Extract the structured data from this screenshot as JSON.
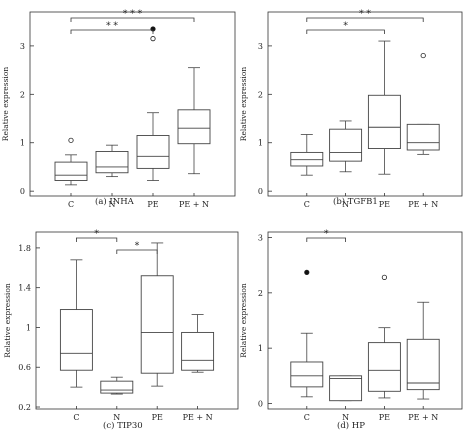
{
  "chart_data": [
    {
      "type": "box",
      "caption": "(a)  INHA",
      "ylabel": "Relative expression",
      "categories": [
        "C",
        "N",
        "PE",
        "PE + N"
      ],
      "ylim": [
        -0.1,
        3.7
      ],
      "yticks": [
        0,
        1,
        2,
        3
      ],
      "boxes": [
        {
          "min": 0.13,
          "q1": 0.22,
          "median": 0.33,
          "q3": 0.6,
          "max": 0.75,
          "outliers": [
            {
              "value": 1.05,
              "filled": false
            }
          ]
        },
        {
          "min": 0.3,
          "q1": 0.38,
          "median": 0.5,
          "q3": 0.82,
          "max": 0.95,
          "outliers": []
        },
        {
          "min": 0.22,
          "q1": 0.47,
          "median": 0.72,
          "q3": 1.15,
          "max": 1.62,
          "outliers": [
            {
              "value": 3.35,
              "filled": true
            },
            {
              "value": 3.15,
              "filled": false
            }
          ]
        },
        {
          "min": 0.36,
          "q1": 0.98,
          "median": 1.3,
          "q3": 1.68,
          "max": 2.55,
          "outliers": []
        }
      ],
      "significance": [
        {
          "from": 0,
          "to": 3,
          "label": "* * *"
        },
        {
          "from": 0,
          "to": 2,
          "label": "* *"
        }
      ]
    },
    {
      "type": "box",
      "caption": "(b)  TGFB1",
      "ylabel": "Relative expression",
      "categories": [
        "C",
        "N",
        "PE",
        "PE + N"
      ],
      "ylim": [
        -0.1,
        3.7
      ],
      "yticks": [
        0,
        1,
        2,
        3
      ],
      "boxes": [
        {
          "min": 0.33,
          "q1": 0.52,
          "median": 0.65,
          "q3": 0.8,
          "max": 1.17,
          "outliers": []
        },
        {
          "min": 0.4,
          "q1": 0.62,
          "median": 0.8,
          "q3": 1.28,
          "max": 1.45,
          "outliers": []
        },
        {
          "min": 0.35,
          "q1": 0.88,
          "median": 1.32,
          "q3": 1.98,
          "max": 3.1,
          "outliers": []
        },
        {
          "min": 0.76,
          "q1": 0.85,
          "median": 1.0,
          "q3": 1.38,
          "max": 1.38,
          "outliers": [
            {
              "value": 2.8,
              "filled": false
            }
          ]
        }
      ],
      "significance": [
        {
          "from": 0,
          "to": 3,
          "label": "* *"
        },
        {
          "from": 0,
          "to": 2,
          "label": "*"
        }
      ]
    },
    {
      "type": "box",
      "caption": "(c)  TIP30",
      "ylabel": "Relative expression",
      "categories": [
        "C",
        "N",
        "PE",
        "PE + N"
      ],
      "ylim": [
        0.18,
        1.96
      ],
      "yticks": [
        0.2,
        0.6,
        1,
        1.4,
        1.8
      ],
      "ytick_labels": [
        "0.2",
        "0.6",
        "1",
        "1.4",
        "1.8"
      ],
      "boxes": [
        {
          "min": 0.4,
          "q1": 0.57,
          "median": 0.74,
          "q3": 1.18,
          "max": 1.68,
          "outliers": []
        },
        {
          "min": 0.33,
          "q1": 0.34,
          "median": 0.37,
          "q3": 0.46,
          "max": 0.5,
          "outliers": []
        },
        {
          "min": 0.41,
          "q1": 0.54,
          "median": 0.95,
          "q3": 1.52,
          "max": 1.85,
          "outliers": []
        },
        {
          "min": 0.55,
          "q1": 0.57,
          "median": 0.67,
          "q3": 0.95,
          "max": 1.13,
          "outliers": []
        }
      ],
      "significance": [
        {
          "from": 0,
          "to": 1,
          "label": "*"
        },
        {
          "from": 1,
          "to": 2,
          "label": "*"
        }
      ]
    },
    {
      "type": "box",
      "caption": "(d)  HP",
      "ylabel": "Relative expression",
      "categories": [
        "C",
        "N",
        "PE",
        "PE + N"
      ],
      "ylim": [
        -0.1,
        3.1
      ],
      "yticks": [
        0,
        1,
        2,
        3
      ],
      "boxes": [
        {
          "min": 0.12,
          "q1": 0.3,
          "median": 0.5,
          "q3": 0.75,
          "max": 1.27,
          "outliers": [
            {
              "value": 2.37,
              "filled": true
            }
          ]
        },
        {
          "min": 0.05,
          "q1": 0.05,
          "median": 0.45,
          "q3": 0.5,
          "max": 0.5,
          "outliers": []
        },
        {
          "min": 0.1,
          "q1": 0.22,
          "median": 0.6,
          "q3": 1.1,
          "max": 1.37,
          "outliers": [
            {
              "value": 2.28,
              "filled": false
            }
          ]
        },
        {
          "min": 0.08,
          "q1": 0.25,
          "median": 0.37,
          "q3": 1.16,
          "max": 1.83,
          "outliers": []
        }
      ],
      "significance": [
        {
          "from": 0,
          "to": 1,
          "label": "*"
        }
      ]
    }
  ]
}
